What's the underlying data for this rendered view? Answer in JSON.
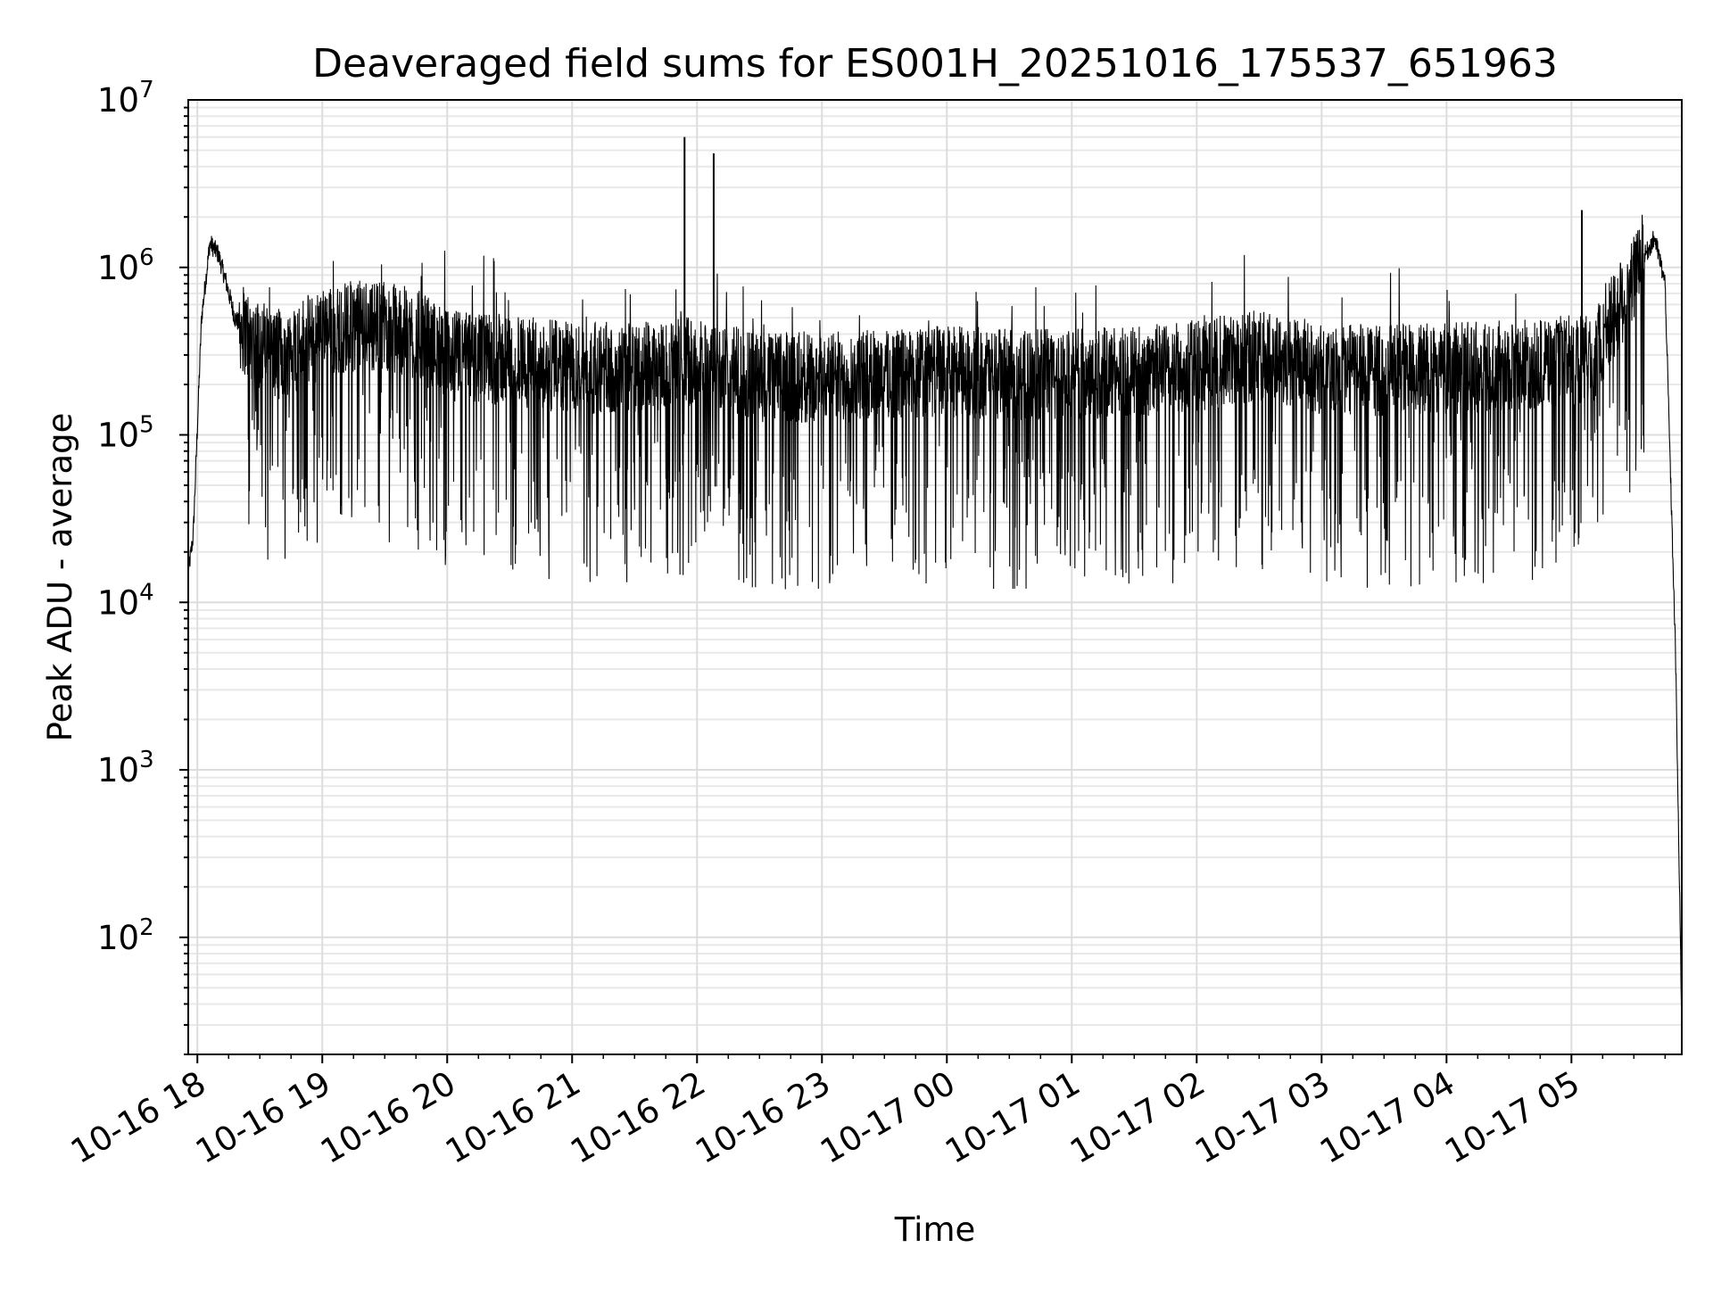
{
  "chart_data": {
    "type": "line",
    "title": "Deaveraged field sums for ES001H_20251016_175537_651963",
    "xlabel": "Time",
    "ylabel": "Peak ADU - average",
    "yscale": "log",
    "ylim": [
      20,
      10000000
    ],
    "xlim": [
      "2025-10-16 17:55:37",
      "2025-10-17 05:53:00"
    ],
    "grid": "major and minor",
    "line_color": "#000000",
    "x_tick_labels": [
      "10-16 18",
      "10-16 19",
      "10-16 20",
      "10-16 21",
      "10-16 22",
      "10-16 23",
      "10-17 00",
      "10-17 01",
      "10-17 02",
      "10-17 03",
      "10-17 04",
      "10-17 05"
    ],
    "y_tick_labels": [
      {
        "base": "10",
        "exp": "2"
      },
      {
        "base": "10",
        "exp": "3"
      },
      {
        "base": "10",
        "exp": "4"
      },
      {
        "base": "10",
        "exp": "5"
      },
      {
        "base": "10",
        "exp": "6"
      },
      {
        "base": "10",
        "exp": "7"
      }
    ],
    "series": [
      {
        "x": [
          "2025-10-16 17:55:37",
          "2025-10-16 17:58",
          "2025-10-16 18:02",
          "2025-10-16 18:06",
          "2025-10-16 18:10",
          "2025-10-16 18:14",
          "2025-10-16 18:18",
          "2025-10-16 18:24",
          "2025-10-16 18:30",
          "2025-10-16 18:40",
          "2025-10-16 18:50",
          "2025-10-16 19:00",
          "2025-10-16 19:15",
          "2025-10-16 19:30",
          "2025-10-16 19:45",
          "2025-10-16 20:00",
          "2025-10-16 20:30",
          "2025-10-16 21:00",
          "2025-10-16 21:30",
          "2025-10-16 21:55",
          "2025-10-16 22:10",
          "2025-10-16 22:30",
          "2025-10-16 23:00",
          "2025-10-16 23:30",
          "2025-10-17 00:00",
          "2025-10-17 00:30",
          "2025-10-17 01:00",
          "2025-10-17 01:30",
          "2025-10-17 02:00",
          "2025-10-17 02:30",
          "2025-10-17 03:00",
          "2025-10-17 03:30",
          "2025-10-17 04:00",
          "2025-10-17 04:30",
          "2025-10-17 04:50",
          "2025-10-17 05:10",
          "2025-10-17 05:20",
          "2025-10-17 05:30",
          "2025-10-17 05:40",
          "2025-10-17 05:45",
          "2025-10-17 05:50",
          "2025-10-17 05:53"
        ],
        "y": [
          15000,
          25000,
          500000,
          1400000,
          1200000,
          800000,
          500000,
          400000,
          350000,
          300000,
          350000,
          400000,
          450000,
          450000,
          400000,
          300000,
          280000,
          250000,
          250000,
          280000,
          250000,
          220000,
          220000,
          230000,
          240000,
          230000,
          230000,
          240000,
          260000,
          300000,
          250000,
          240000,
          250000,
          260000,
          270000,
          280000,
          500000,
          900000,
          1500000,
          800000,
          5000,
          30
        ]
      }
    ],
    "spikes": [
      {
        "x": "2025-10-16 21:54",
        "y": 6000000
      },
      {
        "x": "2025-10-16 22:08",
        "y": 4800000
      },
      {
        "x": "2025-10-17 05:05",
        "y": 2200000
      }
    ]
  }
}
